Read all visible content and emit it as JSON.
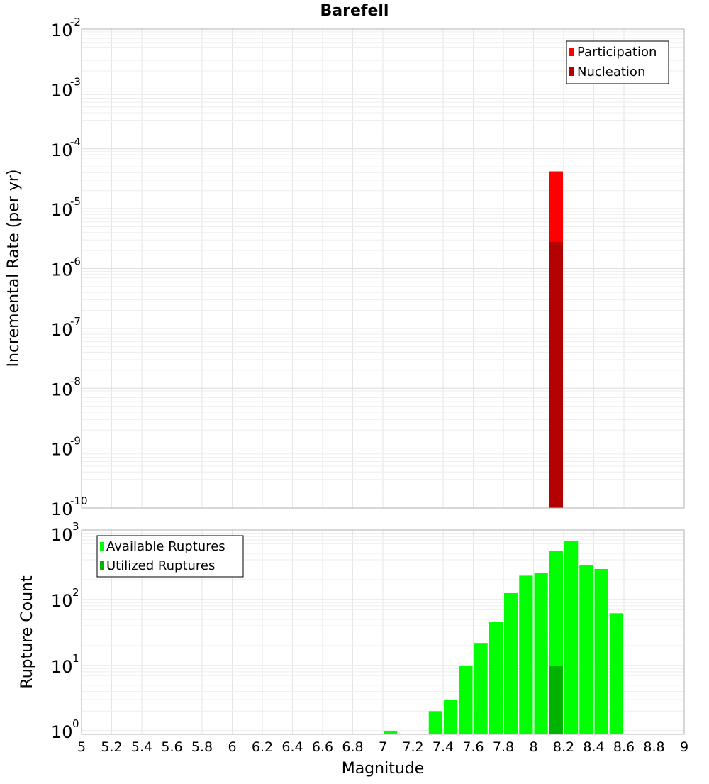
{
  "chart_data": [
    {
      "type": "bar",
      "title": "Barefell",
      "xlabel": "",
      "ylabel": "Incremental Rate (per yr)",
      "yscale": "log",
      "ylim": [
        1e-10,
        0.01
      ],
      "xlim": [
        5,
        9
      ],
      "y_tick_labels": [
        {
          "base": "10",
          "exp": "-2"
        },
        {
          "base": "10",
          "exp": "-3"
        },
        {
          "base": "10",
          "exp": "-4"
        },
        {
          "base": "10",
          "exp": "-5"
        },
        {
          "base": "10",
          "exp": "-6"
        },
        {
          "base": "10",
          "exp": "-7"
        },
        {
          "base": "10",
          "exp": "-8"
        },
        {
          "base": "10",
          "exp": "-9"
        },
        {
          "base": "10",
          "exp": "-10"
        }
      ],
      "grid": true,
      "legend_position": "top-right",
      "bar_width": 0.1,
      "series": [
        {
          "name": "Participation",
          "color": "#ff0000",
          "x": [
            8.15
          ],
          "values": [
            4.2e-05
          ]
        },
        {
          "name": "Nucleation",
          "color": "#b30000",
          "x": [
            8.15
          ],
          "values": [
            2.8e-06
          ]
        }
      ]
    },
    {
      "type": "bar",
      "title": "",
      "xlabel": "Magnitude",
      "ylabel": "Rupture Count",
      "yscale": "log",
      "ylim": [
        0.8,
        1000
      ],
      "xlim": [
        5,
        9
      ],
      "x_tick_labels": [
        "5",
        "5.2",
        "5.4",
        "5.6",
        "5.8",
        "6",
        "6.2",
        "6.4",
        "6.6",
        "6.8",
        "7",
        "7.2",
        "7.4",
        "7.6",
        "7.8",
        "8",
        "8.2",
        "8.4",
        "8.6",
        "8.8",
        "9"
      ],
      "y_tick_labels": [
        {
          "base": "10",
          "exp": "3"
        },
        {
          "base": "10",
          "exp": "2"
        },
        {
          "base": "10",
          "exp": "1"
        },
        {
          "base": "10",
          "exp": "0"
        }
      ],
      "grid": true,
      "legend_position": "top-left",
      "bar_width": 0.1,
      "series": [
        {
          "name": "Available Ruptures",
          "color": "#00ff00",
          "x": [
            7.05,
            7.35,
            7.45,
            7.55,
            7.65,
            7.75,
            7.85,
            7.95,
            8.05,
            8.15,
            8.25,
            8.35,
            8.45,
            8.55
          ],
          "values": [
            1,
            2,
            3,
            10,
            22,
            46,
            125,
            230,
            255,
            540,
            770,
            330,
            290,
            62
          ]
        },
        {
          "name": "Utilized Ruptures",
          "color": "#00b300",
          "x": [
            8.15
          ],
          "values": [
            10
          ]
        }
      ]
    }
  ]
}
